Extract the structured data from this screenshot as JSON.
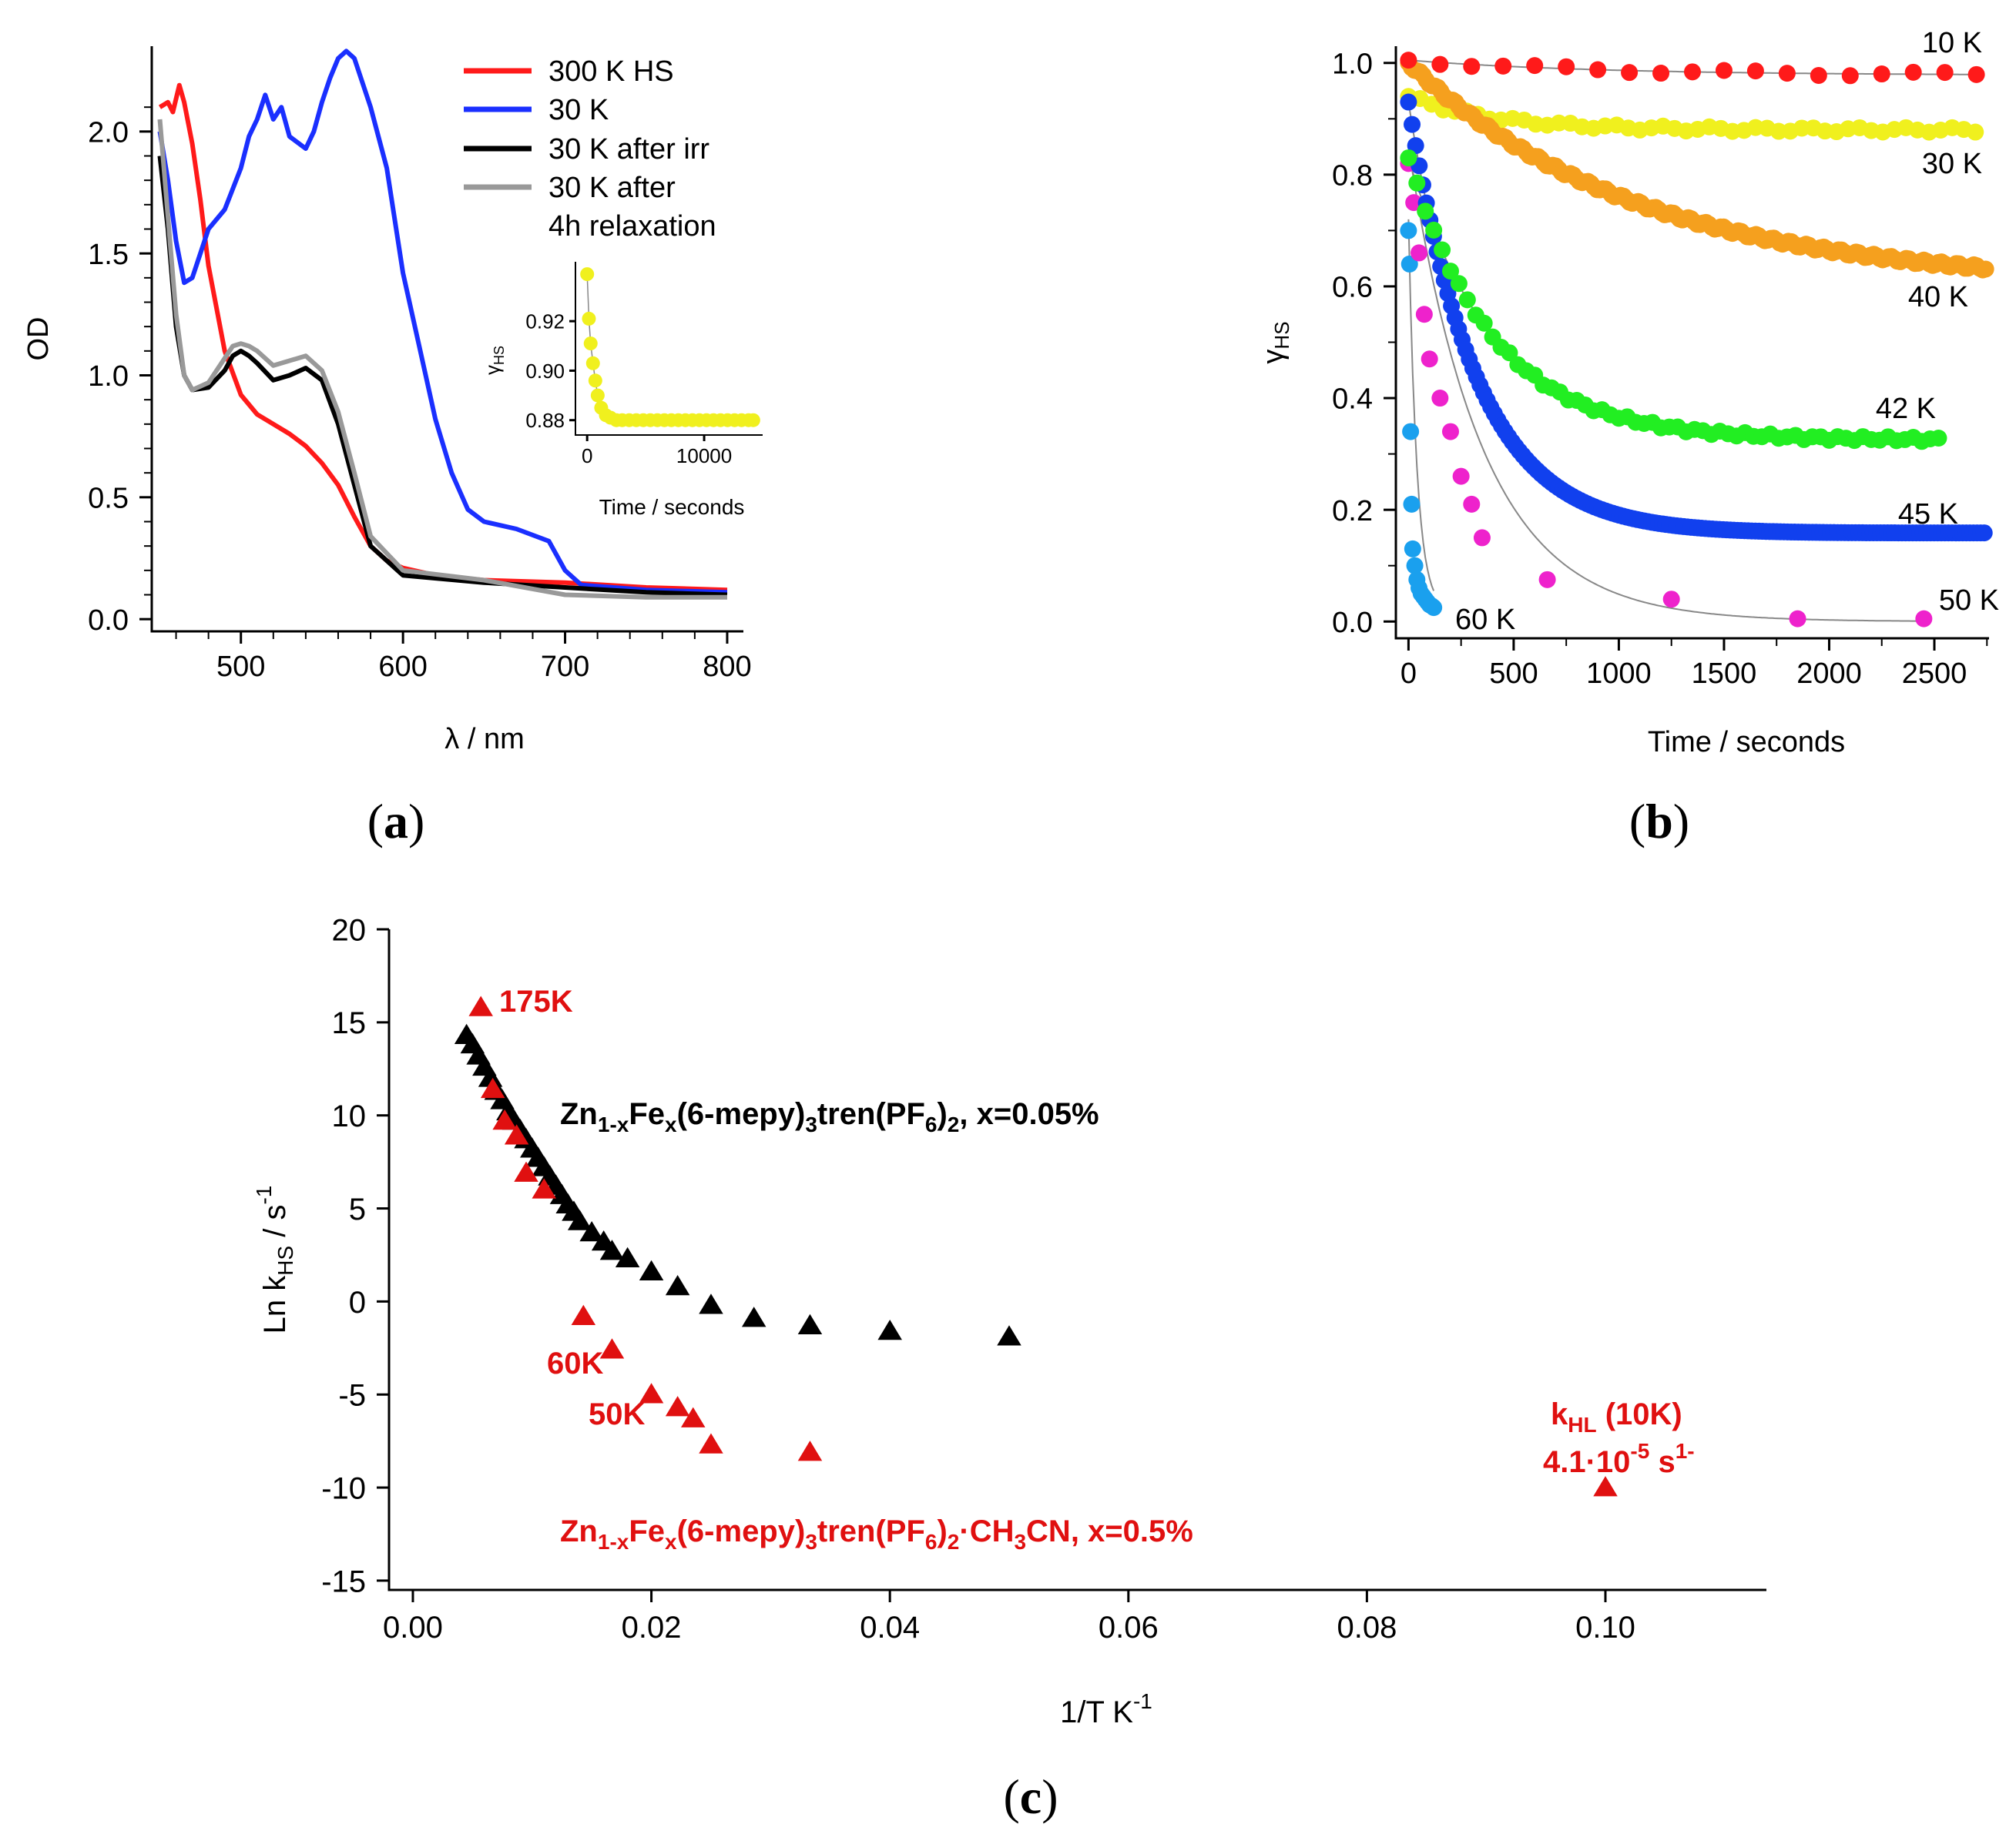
{
  "panel_labels": {
    "a": "(a)",
    "b": "(b)",
    "c": "(c)"
  },
  "chart_data": [
    {
      "id": "a",
      "type": "line",
      "xlabel": "λ / nm",
      "ylabel": "OD",
      "xlim": [
        445,
        810
      ],
      "ylim": [
        -0.05,
        2.35
      ],
      "xticks": [
        "500",
        "600",
        "700",
        "800"
      ],
      "xtick_values": [
        500,
        600,
        700,
        800
      ],
      "yticks": [
        "0.0",
        "0.5",
        "1.0",
        "1.5",
        "2.0"
      ],
      "ytick_values": [
        0,
        0.5,
        1.0,
        1.5,
        2.0
      ],
      "legend_position": "top-right",
      "series": [
        {
          "name": "300 K HS",
          "color": "#ff1a1a",
          "x": [
            450,
            455,
            458,
            462,
            465,
            470,
            475,
            480,
            490,
            500,
            510,
            520,
            530,
            540,
            550,
            560,
            570,
            580,
            590,
            600,
            620,
            650,
            700,
            750,
            800
          ],
          "y": [
            2.1,
            2.12,
            2.08,
            2.19,
            2.12,
            1.95,
            1.72,
            1.45,
            1.1,
            0.92,
            0.84,
            0.8,
            0.76,
            0.71,
            0.64,
            0.55,
            0.42,
            0.3,
            0.24,
            0.21,
            0.18,
            0.16,
            0.15,
            0.13,
            0.12
          ]
        },
        {
          "name": "30 K",
          "color": "#1a2fff",
          "x": [
            450,
            455,
            460,
            465,
            470,
            480,
            490,
            500,
            505,
            510,
            515,
            520,
            525,
            530,
            540,
            545,
            550,
            555,
            560,
            565,
            570,
            580,
            590,
            600,
            610,
            620,
            630,
            640,
            650,
            670,
            690,
            700,
            710,
            750,
            800
          ],
          "y": [
            2.0,
            1.8,
            1.55,
            1.38,
            1.4,
            1.6,
            1.68,
            1.85,
            1.98,
            2.05,
            2.15,
            2.05,
            2.1,
            1.98,
            1.93,
            2.0,
            2.12,
            2.22,
            2.3,
            2.33,
            2.3,
            2.1,
            1.85,
            1.42,
            1.12,
            0.82,
            0.6,
            0.45,
            0.4,
            0.37,
            0.32,
            0.2,
            0.14,
            0.12,
            0.11
          ]
        },
        {
          "name": "30 K after irr",
          "color": "#000000",
          "x": [
            450,
            455,
            460,
            465,
            470,
            480,
            490,
            495,
            500,
            505,
            510,
            520,
            530,
            540,
            550,
            560,
            570,
            580,
            600,
            650,
            700,
            750,
            800
          ],
          "y": [
            1.9,
            1.6,
            1.2,
            1.0,
            0.94,
            0.95,
            1.02,
            1.08,
            1.1,
            1.08,
            1.05,
            0.98,
            1.0,
            1.03,
            0.98,
            0.8,
            0.55,
            0.3,
            0.18,
            0.15,
            0.13,
            0.11,
            0.1
          ]
        },
        {
          "name": "30 K after\n4h relaxation",
          "color": "#999999",
          "x": [
            450,
            455,
            460,
            465,
            470,
            480,
            490,
            495,
            500,
            505,
            510,
            520,
            530,
            540,
            550,
            560,
            570,
            580,
            600,
            650,
            700,
            750,
            800
          ],
          "y": [
            2.05,
            1.65,
            1.25,
            1.0,
            0.94,
            0.97,
            1.07,
            1.12,
            1.13,
            1.12,
            1.1,
            1.04,
            1.06,
            1.08,
            1.02,
            0.85,
            0.6,
            0.34,
            0.2,
            0.16,
            0.1,
            0.09,
            0.09
          ]
        }
      ],
      "inset": {
        "type": "scatter",
        "xlabel": "Time / seconds",
        "ylabel": "γHS",
        "xlim": [
          -1000,
          15000
        ],
        "ylim": [
          0.874,
          0.944
        ],
        "xticks": [
          "0",
          "10000"
        ],
        "xtick_values": [
          0,
          10000
        ],
        "yticks": [
          "0.88",
          "0.90",
          "0.92"
        ],
        "ytick_values": [
          0.88,
          0.9,
          0.92
        ],
        "color": "#f0f01e",
        "x": [
          0,
          150,
          300,
          500,
          700,
          900,
          1200,
          1600,
          2000,
          2500,
          3000,
          3600,
          4200,
          4800,
          5400,
          6000,
          6600,
          7200,
          7800,
          8400,
          9000,
          9600,
          10200,
          10800,
          11400,
          12000,
          12600,
          13200,
          13800,
          14200
        ],
        "y": [
          0.939,
          0.921,
          0.911,
          0.903,
          0.896,
          0.89,
          0.885,
          0.882,
          0.881,
          0.88,
          0.88,
          0.88,
          0.88,
          0.88,
          0.88,
          0.88,
          0.88,
          0.88,
          0.88,
          0.88,
          0.88,
          0.88,
          0.88,
          0.88,
          0.88,
          0.88,
          0.88,
          0.88,
          0.88,
          0.88
        ]
      }
    },
    {
      "id": "b",
      "type": "scatter",
      "xlabel": "Time / seconds",
      "ylabel": "γHS",
      "xlim": [
        -60,
        2760
      ],
      "ylim": [
        -0.03,
        1.03
      ],
      "xticks": [
        "0",
        "500",
        "1000",
        "1500",
        "2000",
        "2500"
      ],
      "xtick_values": [
        0,
        500,
        1000,
        1500,
        2000,
        2500
      ],
      "yticks": [
        "0.0",
        "0.2",
        "0.4",
        "0.6",
        "0.8",
        "1.0"
      ],
      "ytick_values": [
        0,
        0.2,
        0.4,
        0.6,
        0.8,
        1.0
      ],
      "series": [
        {
          "name": "10 K",
          "color": "#ff1a1a",
          "y0": 1.005,
          "yinf": 0.978,
          "tau": 900,
          "tmax": 2730,
          "step": 150
        },
        {
          "name": "30 K",
          "color": "#f0f01e",
          "y0": 0.94,
          "yinf": 0.88,
          "tau": 400,
          "tmax": 2700,
          "step": 55
        },
        {
          "name": "40 K",
          "color": "#f5a01e",
          "y0": 1.0,
          "yinf": 0.6,
          "tau": 1100,
          "tmax": 2750,
          "step": 14
        },
        {
          "name": "42 K",
          "color": "#22ee22",
          "y0": 0.83,
          "yinf": 0.325,
          "tau": 400,
          "tmax": 2530,
          "step": 40
        },
        {
          "name": "45 K",
          "color": "#1140ee",
          "y0": 0.93,
          "yinf": 0.155,
          "tau": 320,
          "tmax": 2750,
          "step": 17
        },
        {
          "name": "50 K",
          "color": "#ee22cc",
          "y0": 0.85,
          "yinf": 0.0,
          "tau": 350,
          "x": [
            0,
            25,
            50,
            75,
            100,
            150,
            200,
            250,
            300,
            350,
            660,
            1250,
            1850,
            2450
          ],
          "y": [
            0.82,
            0.75,
            0.66,
            0.55,
            0.47,
            0.4,
            0.34,
            0.26,
            0.21,
            0.15,
            0.075,
            0.04,
            0.005,
            0.005
          ]
        },
        {
          "name": "60 K",
          "color": "#1aa0ee",
          "y0": 0.72,
          "yinf": 0.02,
          "tau": 40,
          "x": [
            0,
            5,
            10,
            15,
            20,
            30,
            40,
            50,
            60,
            70,
            80,
            90,
            100,
            110,
            120
          ],
          "y": [
            0.7,
            0.64,
            0.34,
            0.21,
            0.13,
            0.1,
            0.075,
            0.06,
            0.05,
            0.045,
            0.04,
            0.035,
            0.03,
            0.028,
            0.025
          ]
        }
      ]
    },
    {
      "id": "c",
      "type": "scatter",
      "xlabel": "1/T K⁻¹",
      "ylabel": "Ln kHS / s⁻¹",
      "xlim": [
        -0.002,
        0.1135
      ],
      "ylim": [
        -15.5,
        20
      ],
      "xticks": [
        "0.00",
        "0.02",
        "0.04",
        "0.06",
        "0.08",
        "0.10"
      ],
      "xtick_values": [
        0,
        0.02,
        0.04,
        0.06,
        0.08,
        0.1
      ],
      "yticks": [
        "-15",
        "-10",
        "-5",
        "0",
        "5",
        "10",
        "15",
        "20"
      ],
      "ytick_values": [
        -15,
        -10,
        -5,
        0,
        5,
        10,
        15,
        20
      ],
      "series": [
        {
          "name": "Zn1-xFex(6-mepy)3tren(PF6)2, x=0.05%",
          "color": "#000000",
          "x": [
            0.0045,
            0.005,
            0.0055,
            0.006,
            0.0065,
            0.007,
            0.0075,
            0.008,
            0.0085,
            0.009,
            0.0095,
            0.01,
            0.0105,
            0.011,
            0.0115,
            0.012,
            0.0125,
            0.013,
            0.0135,
            0.014,
            0.015,
            0.016,
            0.0167,
            0.018,
            0.02,
            0.0222,
            0.025,
            0.0286,
            0.0333,
            0.04,
            0.05
          ],
          "y": [
            14.3,
            13.8,
            13.2,
            12.6,
            12.0,
            11.3,
            10.8,
            10.2,
            9.7,
            9.2,
            8.7,
            8.2,
            7.7,
            7.2,
            6.7,
            6.2,
            5.7,
            5.2,
            4.8,
            4.3,
            3.7,
            3.2,
            2.7,
            2.3,
            1.6,
            0.8,
            -0.2,
            -0.9,
            -1.3,
            -1.6,
            -1.9
          ]
        },
        {
          "name": "Zn1-xFex(6-mepy)3tren(PF6)2·CH3CN, x=0.5%",
          "color": "#e01010",
          "x": [
            0.0057,
            0.0067,
            0.0077,
            0.0087,
            0.0095,
            0.011,
            0.0143,
            0.0167,
            0.02,
            0.0222,
            0.0235,
            0.025,
            0.0333,
            0.1
          ],
          "y": [
            15.8,
            11.4,
            9.7,
            8.9,
            6.9,
            6.0,
            -0.8,
            -2.6,
            -5.0,
            -5.7,
            -6.3,
            -7.7,
            -8.1,
            -10.0
          ]
        }
      ],
      "annotations": {
        "k175": "175K",
        "k60": "60K",
        "k50": "50K",
        "khl_line1_main": "k",
        "khl_line1_sub": "HL",
        "khl_line1_rest": " (10K)",
        "khl_line2_main": "4.1·10",
        "khl_line2_sup": "-5",
        "khl_line2_rest": " s",
        "khl_line2_sup2": "1-",
        "black_label": {
          "p1": "Zn",
          "s1": "1-x",
          "p2": "Fe",
          "s2": "x",
          "p3": "(6-mepy)",
          "s3": "3",
          "p4": "tren(PF",
          "s4": "6",
          "p5": ")",
          "s5": "2",
          "p6": ", x=0.05%"
        },
        "red_label": {
          "p1": "Zn",
          "s1": "1-x",
          "p2": "Fe",
          "s2": "x",
          "p3": "(6-mepy)",
          "s3": "3",
          "p4": "tren(PF",
          "s4": "6",
          "p5": ")",
          "s5": "2",
          "p6": "·CH",
          "s6": "3",
          "p7": "CN, x=0.5%"
        }
      }
    }
  ]
}
